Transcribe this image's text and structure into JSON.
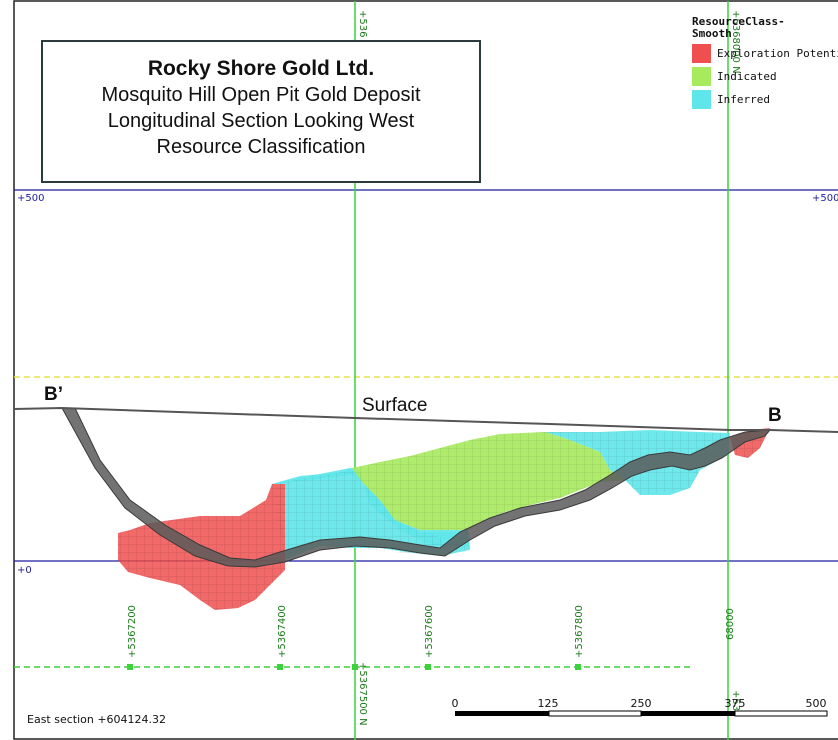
{
  "title": {
    "company": "Rocky Shore Gold Ltd.",
    "lines": [
      "Mosquito Hill Open Pit Gold Deposit",
      "Longitudinal Section Looking West",
      "Resource Classification"
    ]
  },
  "legend": {
    "title_line1": "ResourceClass-",
    "title_line2": "Smooth",
    "items": [
      {
        "label": "Exploration Potential",
        "color": "#ef4f4f"
      },
      {
        "label": "Indicated",
        "color": "#a6ea5d"
      },
      {
        "label": "Inferred",
        "color": "#5fe6ea"
      }
    ]
  },
  "elevation_labels": {
    "upper": "+500",
    "lower": "+0"
  },
  "section_labels": {
    "b_prime": "B’",
    "b": "B",
    "surface": "Surface"
  },
  "northing_ticks": [
    "+5367200",
    "+5367400",
    "+5367600",
    "+5367800",
    "68000"
  ],
  "vertical_line_labels": {
    "top": "+536",
    "bottom_left": "+5367500 N",
    "right_top": "+5368000 N",
    "right_bottom": "+53"
  },
  "scale_bar": {
    "ticks": [
      "0",
      "125",
      "250",
      "375",
      "500"
    ]
  },
  "east_section": "East section +604124.32",
  "colors": {
    "exploration": "#ef4f4f",
    "indicated": "#a6ea5d",
    "inferred": "#5fe6ea",
    "grid_blue": "#1f1fa0",
    "grid_green": "#3bd23b",
    "dashed_yellow": "#e8e04a",
    "pit": "#5a5a5a"
  }
}
